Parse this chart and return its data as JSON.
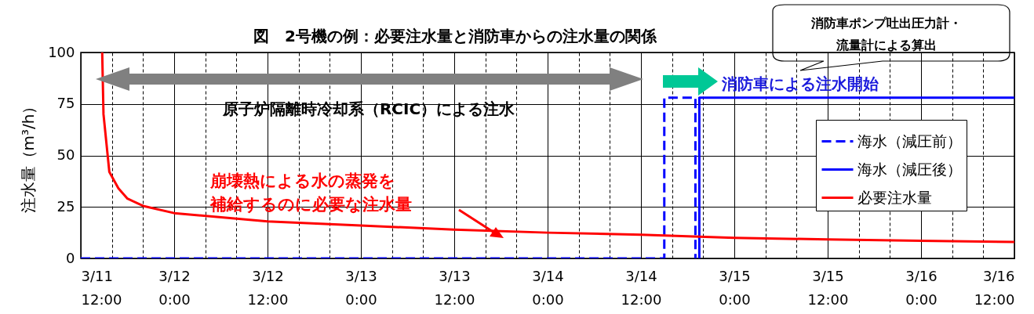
{
  "chart_data": {
    "type": "line",
    "title": "図　2号機の例：必要注水量と消防車からの注水量の関係",
    "ylabel": "注水量（m³/h）",
    "xlim": [
      "--03-11T12:00",
      "--03-16T12:00"
    ],
    "xticks": [
      {
        "value": "--03-11T12:00",
        "label": "3/11\n12:00"
      },
      {
        "value": "--03-11T16:00",
        "label": null
      },
      {
        "value": "--03-11T20:00",
        "label": null
      },
      {
        "value": "--03-12T00:00",
        "label": "3/12\n0:00"
      },
      {
        "value": "--03-12T04:00",
        "label": null
      },
      {
        "value": "--03-12T08:00",
        "label": null
      },
      {
        "value": "--03-12T12:00",
        "label": "3/12\n12:00"
      },
      {
        "value": "--03-12T16:00",
        "label": null
      },
      {
        "value": "--03-12T20:00",
        "label": null
      },
      {
        "value": "--03-13T00:00",
        "label": "3/13\n0:00"
      },
      {
        "value": "--03-13T04:00",
        "label": null
      },
      {
        "value": "--03-13T08:00",
        "label": null
      },
      {
        "value": "--03-13T12:00",
        "label": "3/13\n12:00"
      },
      {
        "value": "--03-13T16:00",
        "label": null
      },
      {
        "value": "--03-13T20:00",
        "label": null
      },
      {
        "value": "--03-14T00:00",
        "label": "3/14\n0:00"
      },
      {
        "value": "--03-14T04:00",
        "label": null
      },
      {
        "value": "--03-14T08:00",
        "label": null
      },
      {
        "value": "--03-14T12:00",
        "label": "3/14\n12:00"
      },
      {
        "value": "--03-14T16:00",
        "label": null
      },
      {
        "value": "--03-14T20:00",
        "label": null
      },
      {
        "value": "--03-15T00:00",
        "label": "3/15\n0:00"
      },
      {
        "value": "--03-15T04:00",
        "label": null
      },
      {
        "value": "--03-15T08:00",
        "label": null
      },
      {
        "value": "--03-15T12:00",
        "label": "3/15\n12:00"
      },
      {
        "value": "--03-15T16:00",
        "label": null
      },
      {
        "value": "--03-15T20:00",
        "label": null
      },
      {
        "value": "--03-16T00:00",
        "label": "3/16\n0:00"
      },
      {
        "value": "--03-16T04:00",
        "label": null
      },
      {
        "value": "--03-16T08:00",
        "label": null
      },
      {
        "value": "--03-16T12:00",
        "label": "3/16\n12:00"
      }
    ],
    "ylim": [
      0,
      100
    ],
    "yticks": [
      0,
      25,
      50,
      75,
      100
    ],
    "grid": true,
    "legend": "right",
    "series": [
      {
        "name": "海水（減圧前）",
        "color": "#0000ff",
        "line_style": "dashed",
        "x": [
          "--03-11T12:00",
          "--03-14T15:00",
          "--03-14T15:00",
          "--03-14T19:00",
          "--03-14T19:00"
        ],
        "values": [
          0,
          0,
          78,
          78,
          0
        ]
      },
      {
        "name": "海水（減圧後）",
        "color": "#0000ff",
        "line_style": "solid",
        "x": [
          "--03-14T19:30",
          "--03-14T19:30",
          "--03-16T12:00"
        ],
        "values": [
          0,
          78,
          78
        ]
      },
      {
        "name": "必要注水量",
        "color": "#ff0000",
        "line_style": "solid",
        "x": [
          "--03-11T14:45",
          "--03-11T14:55",
          "--03-11T15:40",
          "--03-11T16:50",
          "--03-11T18:00",
          "--03-11T20:00",
          "--03-12T00:00",
          "--03-12T12:00",
          "--03-13T00:00",
          "--03-13T12:00",
          "--03-14T00:00",
          "--03-14T12:00",
          "--03-15T00:00",
          "--03-15T12:00",
          "--03-16T00:00",
          "--03-16T12:00"
        ],
        "values": [
          100,
          70,
          42,
          34,
          29,
          25.5,
          22,
          18,
          16,
          14,
          12.5,
          11.5,
          10,
          9.2,
          8.6,
          8
        ]
      }
    ],
    "annotations": [
      "原子炉隔離時冷却系（RCIC）による注水",
      "消防車による注水開始",
      "消防車ポンプ吐出圧力計・",
      "流量計による算出",
      "崩壊熱による水の蒸発を",
      "補給するのに必要な注水量"
    ]
  }
}
